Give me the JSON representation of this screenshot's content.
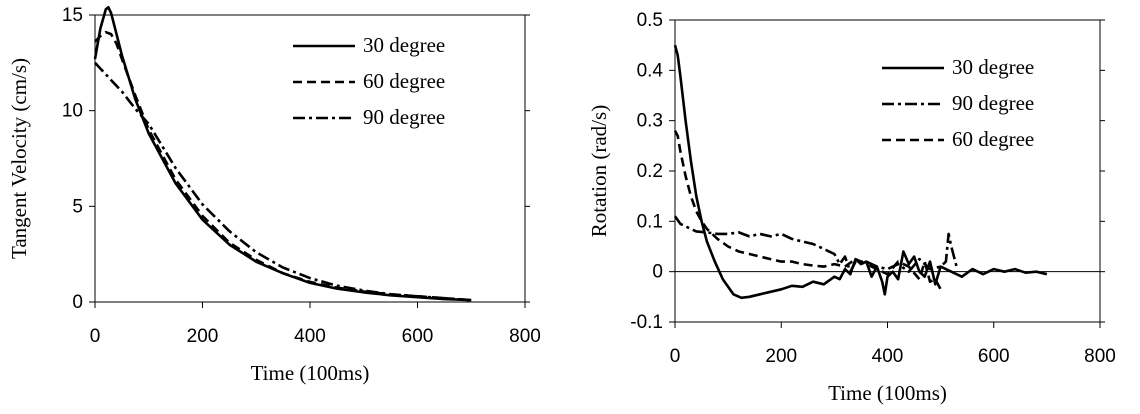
{
  "colors": {
    "line": "#000000",
    "axis": "#000000",
    "background": "#ffffff"
  },
  "chart_data": [
    {
      "type": "line",
      "title": "",
      "xlabel": "Time (100ms)",
      "ylabel": "Tangent Velocity (cm/s)",
      "xlim": [
        0,
        800
      ],
      "ylim": [
        0,
        15
      ],
      "xticks": [
        "0",
        "200",
        "400",
        "600",
        "800"
      ],
      "yticks": [
        "0",
        "5",
        "10",
        "15"
      ],
      "grid": false,
      "legend_position": "top-right",
      "series": [
        {
          "name": "30 degree",
          "style": "solid",
          "x": [
            0,
            10,
            20,
            25,
            30,
            40,
            50,
            75,
            100,
            150,
            200,
            250,
            300,
            350,
            400,
            450,
            500,
            550,
            600,
            650,
            700
          ],
          "y": [
            12.7,
            14.3,
            15.3,
            15.4,
            15.1,
            14.0,
            12.9,
            10.6,
            8.8,
            6.2,
            4.3,
            3.0,
            2.1,
            1.5,
            1.0,
            0.7,
            0.5,
            0.35,
            0.25,
            0.15,
            0.1
          ]
        },
        {
          "name": "60 degree",
          "style": "dashed",
          "x": [
            0,
            10,
            20,
            30,
            40,
            50,
            75,
            100,
            150,
            200,
            250,
            300,
            350,
            400,
            450,
            500,
            550,
            600,
            650,
            700
          ],
          "y": [
            13.6,
            13.9,
            14.1,
            14.0,
            13.5,
            12.7,
            10.8,
            9.0,
            6.4,
            4.5,
            3.1,
            2.2,
            1.5,
            1.05,
            0.75,
            0.55,
            0.4,
            0.3,
            0.2,
            0.1
          ]
        },
        {
          "name": "90 degree",
          "style": "dashdot",
          "x": [
            0,
            10,
            20,
            30,
            40,
            50,
            75,
            100,
            150,
            200,
            250,
            300,
            350,
            400,
            450,
            500,
            550,
            600,
            650,
            700
          ],
          "y": [
            12.5,
            12.2,
            11.9,
            11.6,
            11.3,
            11.0,
            10.1,
            9.3,
            7.0,
            5.1,
            3.7,
            2.6,
            1.8,
            1.25,
            0.85,
            0.6,
            0.4,
            0.3,
            0.2,
            0.1
          ]
        }
      ]
    },
    {
      "type": "line",
      "title": "",
      "xlabel": "Time (100ms)",
      "ylabel": "Rotation (rad/s)",
      "xlim": [
        0,
        800
      ],
      "ylim": [
        -0.1,
        0.5
      ],
      "xticks": [
        "0",
        "200",
        "400",
        "600",
        "800"
      ],
      "yticks": [
        "-0.1",
        "0",
        "0.1",
        "0.2",
        "0.3",
        "0.4",
        "0.5"
      ],
      "grid": false,
      "legend_position": "top-right",
      "series": [
        {
          "name": "30 degree",
          "style": "solid",
          "x": [
            0,
            5,
            10,
            20,
            30,
            40,
            50,
            60,
            75,
            90,
            100,
            110,
            125,
            140,
            160,
            180,
            200,
            220,
            240,
            260,
            280,
            300,
            310,
            320,
            330,
            340,
            350,
            360,
            370,
            380,
            390,
            395,
            400,
            410,
            420,
            430,
            440,
            450,
            460,
            470,
            480,
            490,
            500,
            520,
            540,
            560,
            580,
            600,
            620,
            640,
            660,
            680,
            700
          ],
          "y": [
            0.45,
            0.43,
            0.39,
            0.3,
            0.22,
            0.15,
            0.1,
            0.06,
            0.02,
            -0.015,
            -0.03,
            -0.045,
            -0.052,
            -0.05,
            -0.045,
            -0.04,
            -0.035,
            -0.028,
            -0.03,
            -0.02,
            -0.025,
            -0.01,
            -0.015,
            0.005,
            -0.005,
            0.025,
            0.015,
            0.02,
            -0.01,
            0.01,
            -0.02,
            -0.045,
            -0.01,
            0.0,
            -0.015,
            0.04,
            0.015,
            0.03,
            0.0,
            -0.01,
            0.02,
            -0.025,
            0.01,
            0.0,
            -0.01,
            0.005,
            -0.005,
            0.005,
            0.0,
            0.005,
            -0.002,
            0.0,
            -0.005
          ]
        },
        {
          "name": "90 degree",
          "style": "dashdot",
          "x": [
            0,
            10,
            20,
            30,
            40,
            60,
            80,
            100,
            120,
            140,
            160,
            180,
            200,
            220,
            240,
            260,
            280,
            300,
            310,
            320,
            330,
            340,
            360,
            380,
            400,
            420,
            440,
            460,
            480,
            500,
            510,
            515,
            520,
            530
          ],
          "y": [
            0.11,
            0.095,
            0.09,
            0.085,
            0.08,
            0.078,
            0.075,
            0.075,
            0.078,
            0.07,
            0.075,
            0.07,
            0.075,
            0.065,
            0.06,
            0.055,
            0.045,
            0.035,
            0.015,
            0.03,
            0.0,
            0.02,
            0.02,
            0.01,
            0.005,
            0.015,
            0.0,
            0.025,
            0.005,
            0.01,
            0.02,
            0.075,
            0.05,
            0.01
          ]
        },
        {
          "name": "60 degree",
          "style": "dashed",
          "x": [
            0,
            5,
            10,
            20,
            30,
            40,
            50,
            60,
            80,
            100,
            120,
            140,
            160,
            180,
            200,
            220,
            240,
            260,
            280,
            300,
            320,
            340,
            360,
            380,
            400,
            420,
            440,
            460,
            470,
            480,
            490,
            500
          ],
          "y": [
            0.28,
            0.27,
            0.24,
            0.19,
            0.15,
            0.12,
            0.1,
            0.085,
            0.065,
            0.05,
            0.04,
            0.035,
            0.03,
            0.025,
            0.02,
            0.02,
            0.015,
            0.012,
            0.01,
            0.015,
            0.01,
            0.025,
            0.015,
            0.005,
            -0.005,
            0.02,
            0.01,
            -0.015,
            0.02,
            -0.02,
            -0.015,
            -0.035
          ]
        }
      ]
    }
  ]
}
